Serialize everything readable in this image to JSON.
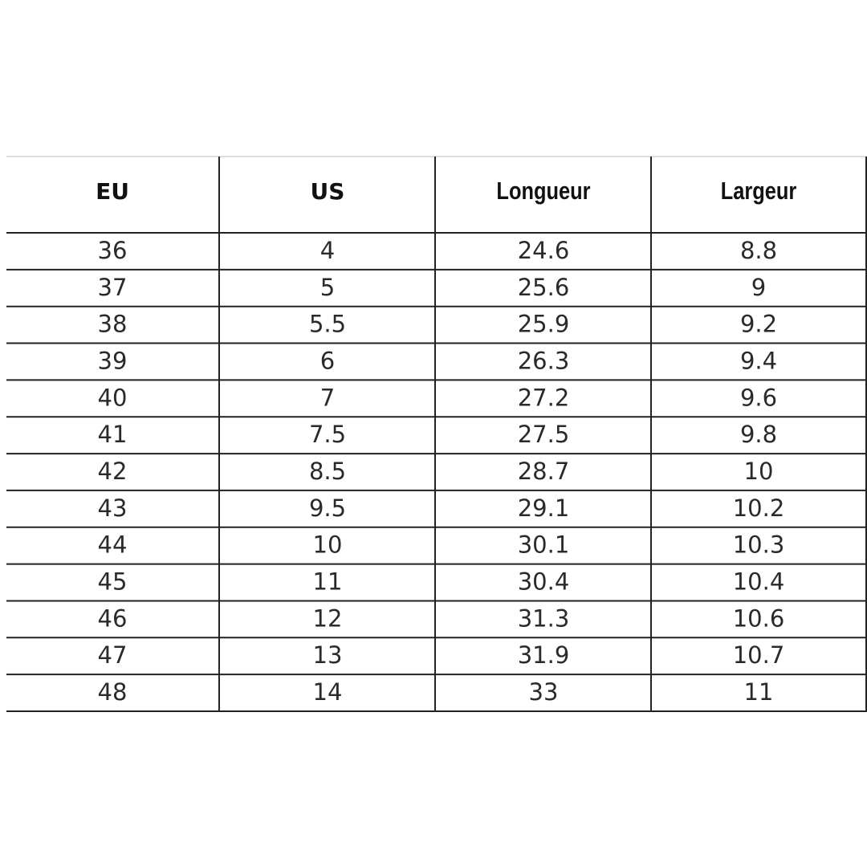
{
  "table": {
    "header": [
      "EU",
      "US",
      "Longueur",
      "Largeur"
    ],
    "rows": [
      [
        "36",
        "4",
        "24.6",
        "8.8"
      ],
      [
        "37",
        "5",
        "25.6",
        "9"
      ],
      [
        "38",
        "5.5",
        "25.9",
        "9.2"
      ],
      [
        "39",
        "6",
        "26.3",
        "9.4"
      ],
      [
        "40",
        "7",
        "27.2",
        "9.6"
      ],
      [
        "41",
        "7.5",
        "27.5",
        "9.8"
      ],
      [
        "42",
        "8.5",
        "28.7",
        "10"
      ],
      [
        "43",
        "9.5",
        "29.1",
        "10.2"
      ],
      [
        "44",
        "10",
        "30.1",
        "10.3"
      ],
      [
        "45",
        "11",
        "30.4",
        "10.4"
      ],
      [
        "46",
        "12",
        "31.3",
        "10.6"
      ],
      [
        "47",
        "13",
        "31.9",
        "10.7"
      ],
      [
        "48",
        "14",
        "33",
        "11"
      ]
    ]
  }
}
